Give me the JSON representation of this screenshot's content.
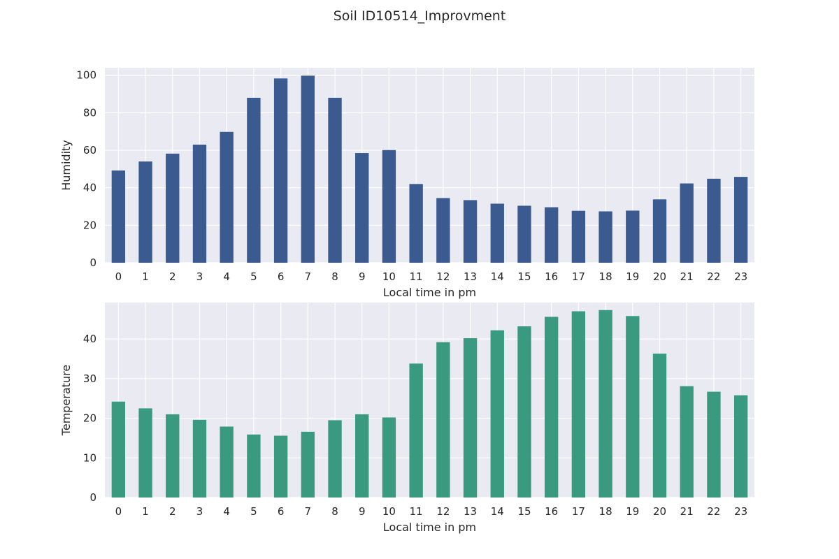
{
  "figure": {
    "title": "Soil ID10514_Improvment"
  },
  "colors": {
    "background": "#eaeaf2",
    "grid": "#ffffff",
    "humidity_bar": "#3b5a8f",
    "temperature_bar": "#3a9a80"
  },
  "chart_data": [
    {
      "type": "bar",
      "title": "",
      "xlabel": "Local time in pm",
      "ylabel": "Humidity",
      "ylim": [
        0,
        104
      ],
      "yticks": [
        0,
        20,
        40,
        60,
        80,
        100
      ],
      "grid": true,
      "categories": [
        "0",
        "1",
        "2",
        "3",
        "4",
        "5",
        "6",
        "7",
        "8",
        "9",
        "10",
        "11",
        "12",
        "13",
        "14",
        "15",
        "16",
        "17",
        "18",
        "19",
        "20",
        "21",
        "22",
        "23"
      ],
      "values": [
        49.2,
        54.0,
        58.2,
        63.0,
        69.8,
        88.0,
        98.3,
        99.8,
        88.0,
        58.5,
        60.1,
        42.0,
        34.5,
        33.4,
        31.5,
        30.4,
        29.6,
        27.7,
        27.4,
        27.8,
        33.8,
        42.3,
        44.8,
        45.8
      ],
      "color": "#3b5a8f"
    },
    {
      "type": "bar",
      "title": "",
      "xlabel": "Local time in pm",
      "ylabel": "Temperature",
      "ylim": [
        0,
        49.2
      ],
      "yticks": [
        0,
        10,
        20,
        30,
        40
      ],
      "grid": true,
      "categories": [
        "0",
        "1",
        "2",
        "3",
        "4",
        "5",
        "6",
        "7",
        "8",
        "9",
        "10",
        "11",
        "12",
        "13",
        "14",
        "15",
        "16",
        "17",
        "18",
        "19",
        "20",
        "21",
        "22",
        "23"
      ],
      "values": [
        24.2,
        22.5,
        21.0,
        19.6,
        17.9,
        15.9,
        15.6,
        16.6,
        19.5,
        21.0,
        20.2,
        33.8,
        39.2,
        40.2,
        42.2,
        43.2,
        45.6,
        47.0,
        47.3,
        45.8,
        36.3,
        28.1,
        26.7,
        25.8
      ],
      "color": "#3a9a80"
    }
  ]
}
